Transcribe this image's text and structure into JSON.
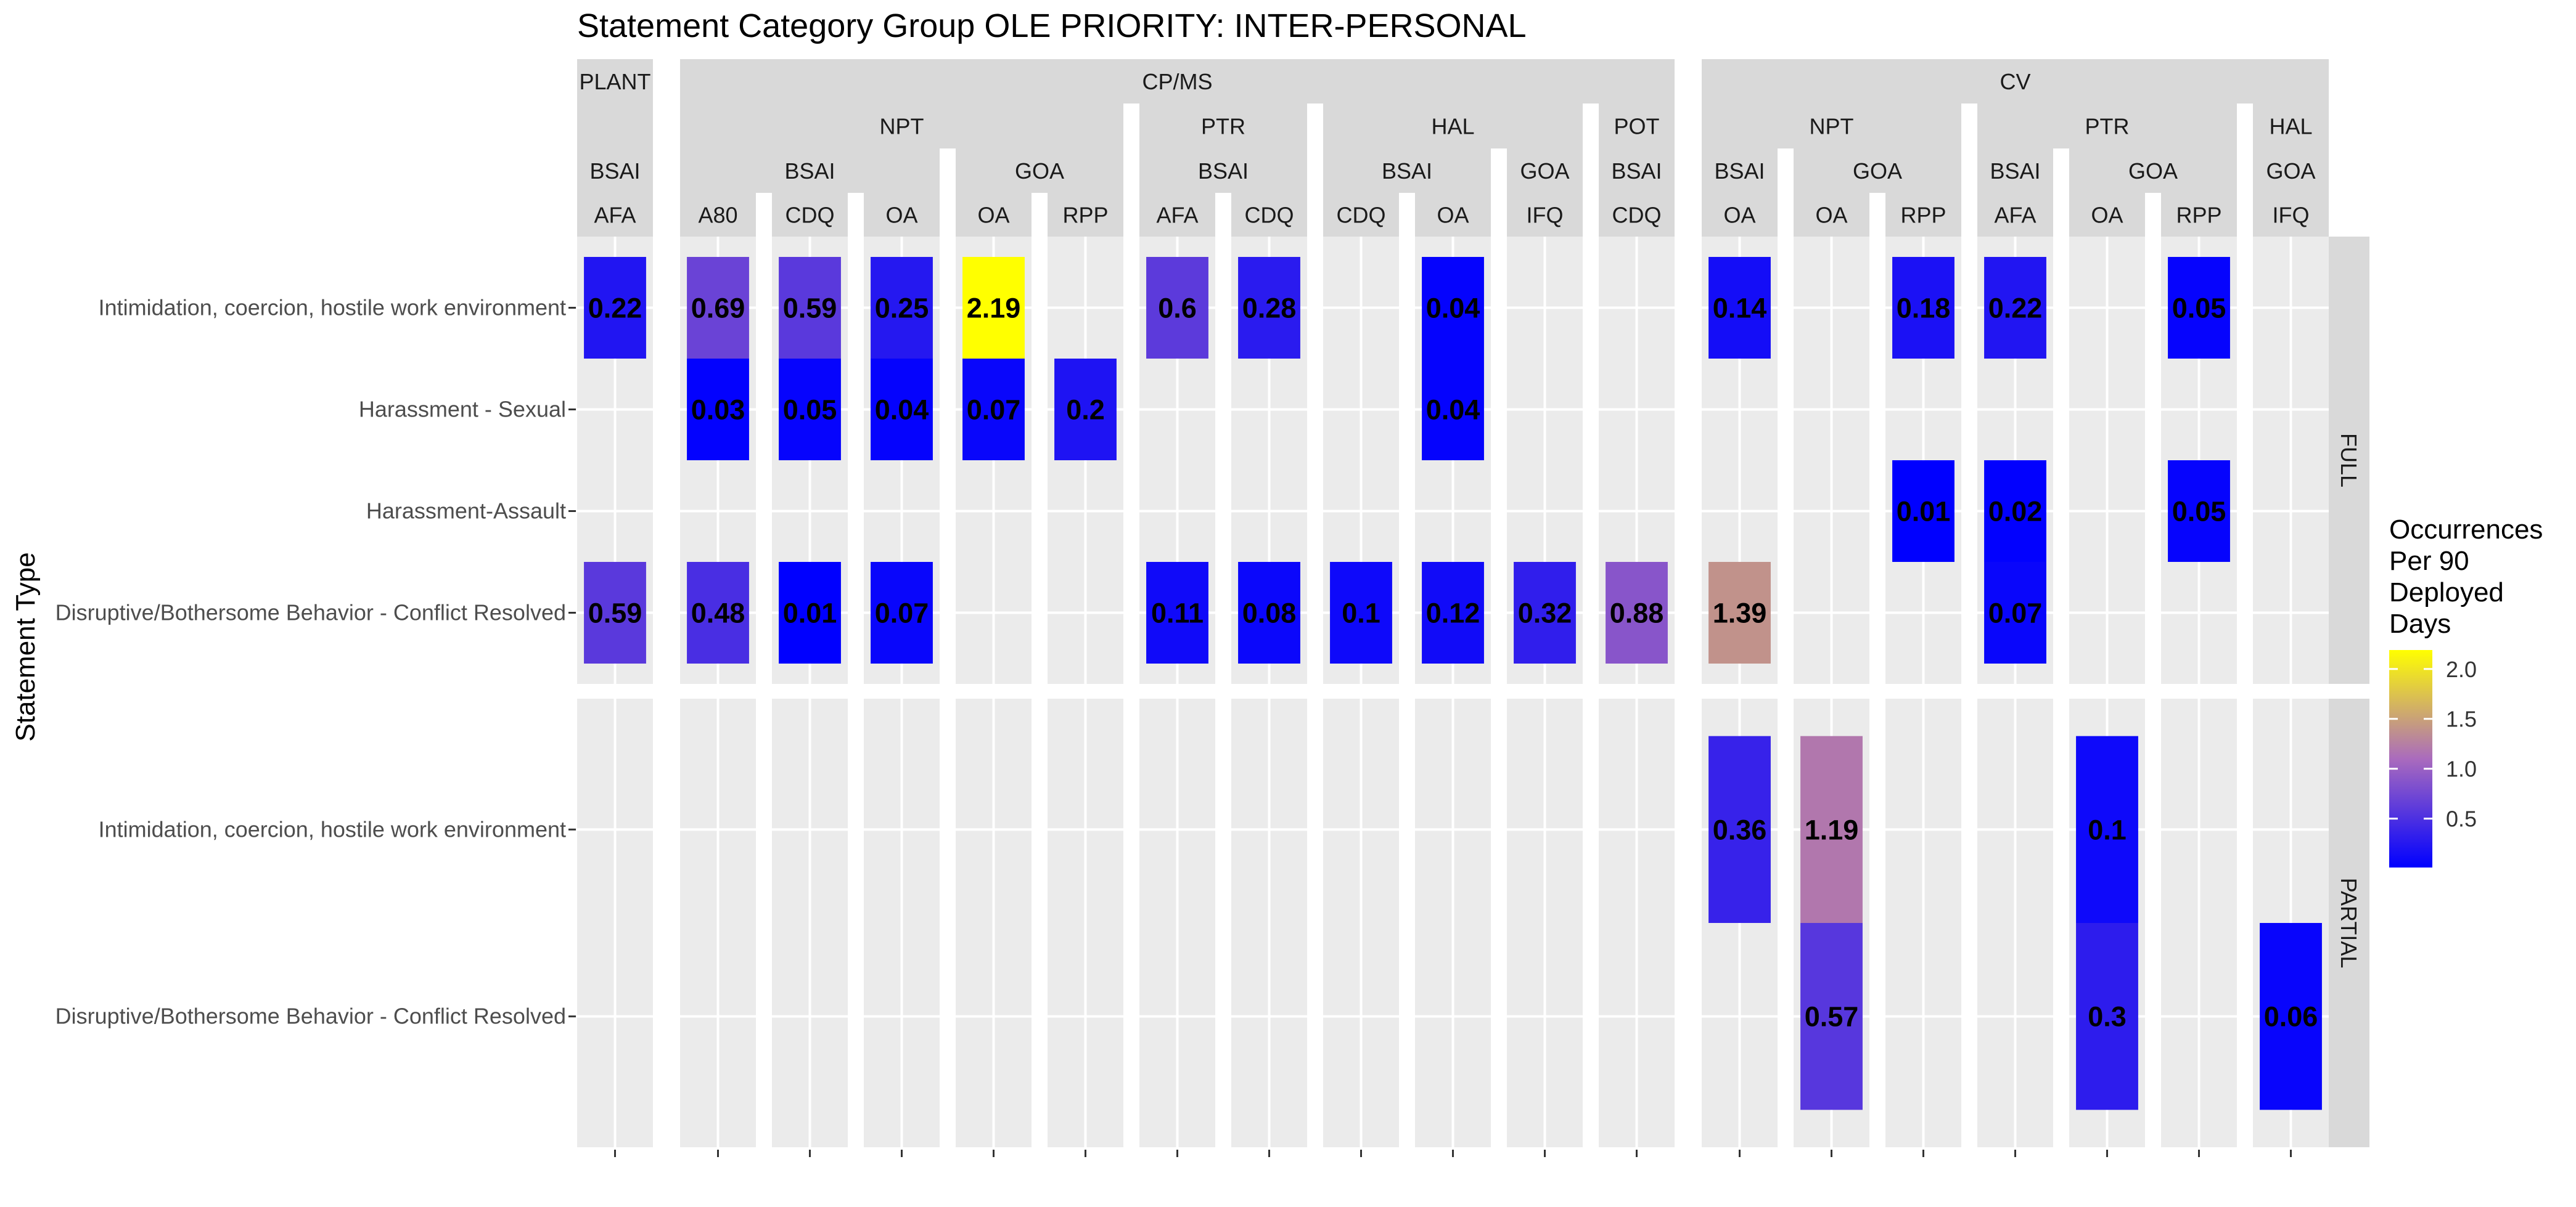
{
  "chart_data": {
    "type": "heatmap",
    "title": "Statement Category Group OLE PRIORITY: INTER-PERSONAL",
    "ylabel": "Statement Type",
    "xlabel": "",
    "legend": {
      "title_lines": [
        "Occurrences",
        "Per 90",
        "Deployed",
        "Days"
      ],
      "ticks": [
        {
          "value": 0.5,
          "label": "0.5"
        },
        {
          "value": 1.0,
          "label": "1.0"
        },
        {
          "value": 1.5,
          "label": "1.5"
        },
        {
          "value": 2.0,
          "label": "2.0"
        }
      ],
      "range": [
        0.01,
        2.19
      ],
      "position": "right",
      "colors": {
        "low": "#0000ff",
        "mid": "#aa6bbd",
        "high": "#ffff00"
      }
    },
    "strip_level1": [
      "PLANT",
      "CP/MS",
      "CV"
    ],
    "strip_level2": [
      "NPT",
      "PTR",
      "HAL",
      "POT",
      "NPT",
      "PTR",
      "HAL"
    ],
    "strip_level3": [
      "BSAI",
      "BSAI",
      "GOA",
      "BSAI",
      "BSAI",
      "GOA",
      "BSAI",
      "BSAI",
      "GOA",
      "BSAI",
      "GOA",
      "GOA"
    ],
    "panels": [
      {
        "l1": 0,
        "l2": null,
        "l3": 0,
        "label": "AFA"
      },
      {
        "l1": 1,
        "l2": 0,
        "l3": 1,
        "label": "A80"
      },
      {
        "l1": 1,
        "l2": 0,
        "l3": 1,
        "label": "CDQ"
      },
      {
        "l1": 1,
        "l2": 0,
        "l3": 1,
        "label": "OA"
      },
      {
        "l1": 1,
        "l2": 0,
        "l3": 2,
        "label": "OA"
      },
      {
        "l1": 1,
        "l2": 0,
        "l3": 2,
        "label": "RPP"
      },
      {
        "l1": 1,
        "l2": 1,
        "l3": 3,
        "label": "AFA"
      },
      {
        "l1": 1,
        "l2": 1,
        "l3": 3,
        "label": "CDQ"
      },
      {
        "l1": 1,
        "l2": 2,
        "l3": 4,
        "label": "CDQ"
      },
      {
        "l1": 1,
        "l2": 2,
        "l3": 4,
        "label": "OA"
      },
      {
        "l1": 1,
        "l2": 2,
        "l3": 5,
        "label": "IFQ"
      },
      {
        "l1": 1,
        "l2": 3,
        "l3": 6,
        "label": "CDQ"
      },
      {
        "l1": 2,
        "l2": 4,
        "l3": 7,
        "label": "OA"
      },
      {
        "l1": 2,
        "l2": 4,
        "l3": 8,
        "label": "OA"
      },
      {
        "l1": 2,
        "l2": 4,
        "l3": 8,
        "label": "RPP"
      },
      {
        "l1": 2,
        "l2": 5,
        "l3": 9,
        "label": "AFA"
      },
      {
        "l1": 2,
        "l2": 5,
        "l3": 10,
        "label": "OA"
      },
      {
        "l1": 2,
        "l2": 5,
        "l3": 10,
        "label": "RPP"
      },
      {
        "l1": 2,
        "l2": 6,
        "l3": 11,
        "label": "IFQ"
      }
    ],
    "rows": [
      {
        "name": "FULL",
        "categories": [
          "Intimidation, coercion, hostile work environment",
          "Harassment - Sexual",
          "Harassment-Assault",
          "Disruptive/Bothersome Behavior - Conflict Resolved"
        ]
      },
      {
        "name": "PARTIAL",
        "categories": [
          "Intimidation, coercion, hostile work environment",
          "Disruptive/Bothersome Behavior - Conflict Resolved"
        ]
      }
    ],
    "cells": [
      {
        "panel": 0,
        "row": 0,
        "cat": 0,
        "value": 0.22,
        "label": "0.22"
      },
      {
        "panel": 0,
        "row": 0,
        "cat": 3,
        "value": 0.59,
        "label": "0.59"
      },
      {
        "panel": 1,
        "row": 0,
        "cat": 0,
        "value": 0.69,
        "label": "0.69"
      },
      {
        "panel": 1,
        "row": 0,
        "cat": 1,
        "value": 0.03,
        "label": "0.03"
      },
      {
        "panel": 1,
        "row": 0,
        "cat": 3,
        "value": 0.48,
        "label": "0.48"
      },
      {
        "panel": 2,
        "row": 0,
        "cat": 0,
        "value": 0.59,
        "label": "0.59"
      },
      {
        "panel": 2,
        "row": 0,
        "cat": 1,
        "value": 0.05,
        "label": "0.05"
      },
      {
        "panel": 2,
        "row": 0,
        "cat": 3,
        "value": 0.01,
        "label": "0.01"
      },
      {
        "panel": 3,
        "row": 0,
        "cat": 0,
        "value": 0.25,
        "label": "0.25"
      },
      {
        "panel": 3,
        "row": 0,
        "cat": 1,
        "value": 0.04,
        "label": "0.04"
      },
      {
        "panel": 3,
        "row": 0,
        "cat": 3,
        "value": 0.07,
        "label": "0.07"
      },
      {
        "panel": 4,
        "row": 0,
        "cat": 0,
        "value": 2.19,
        "label": "2.19"
      },
      {
        "panel": 4,
        "row": 0,
        "cat": 1,
        "value": 0.07,
        "label": "0.07"
      },
      {
        "panel": 5,
        "row": 0,
        "cat": 1,
        "value": 0.2,
        "label": "0.2"
      },
      {
        "panel": 6,
        "row": 0,
        "cat": 0,
        "value": 0.6,
        "label": "0.6"
      },
      {
        "panel": 6,
        "row": 0,
        "cat": 3,
        "value": 0.11,
        "label": "0.11"
      },
      {
        "panel": 7,
        "row": 0,
        "cat": 0,
        "value": 0.28,
        "label": "0.28"
      },
      {
        "panel": 7,
        "row": 0,
        "cat": 3,
        "value": 0.08,
        "label": "0.08"
      },
      {
        "panel": 8,
        "row": 0,
        "cat": 3,
        "value": 0.1,
        "label": "0.1"
      },
      {
        "panel": 9,
        "row": 0,
        "cat": 0,
        "value": 0.04,
        "label": "0.04"
      },
      {
        "panel": 9,
        "row": 0,
        "cat": 1,
        "value": 0.04,
        "label": "0.04"
      },
      {
        "panel": 9,
        "row": 0,
        "cat": 3,
        "value": 0.12,
        "label": "0.12"
      },
      {
        "panel": 10,
        "row": 0,
        "cat": 3,
        "value": 0.32,
        "label": "0.32"
      },
      {
        "panel": 11,
        "row": 0,
        "cat": 3,
        "value": 0.88,
        "label": "0.88"
      },
      {
        "panel": 12,
        "row": 0,
        "cat": 0,
        "value": 0.14,
        "label": "0.14"
      },
      {
        "panel": 12,
        "row": 0,
        "cat": 3,
        "value": 1.39,
        "label": "1.39"
      },
      {
        "panel": 14,
        "row": 0,
        "cat": 0,
        "value": 0.18,
        "label": "0.18"
      },
      {
        "panel": 14,
        "row": 0,
        "cat": 2,
        "value": 0.01,
        "label": "0.01"
      },
      {
        "panel": 15,
        "row": 0,
        "cat": 0,
        "value": 0.22,
        "label": "0.22"
      },
      {
        "panel": 15,
        "row": 0,
        "cat": 2,
        "value": 0.02,
        "label": "0.02"
      },
      {
        "panel": 15,
        "row": 0,
        "cat": 3,
        "value": 0.07,
        "label": "0.07"
      },
      {
        "panel": 17,
        "row": 0,
        "cat": 0,
        "value": 0.05,
        "label": "0.05"
      },
      {
        "panel": 17,
        "row": 0,
        "cat": 2,
        "value": 0.05,
        "label": "0.05"
      },
      {
        "panel": 12,
        "row": 1,
        "cat": 0,
        "value": 0.36,
        "label": "0.36"
      },
      {
        "panel": 13,
        "row": 1,
        "cat": 0,
        "value": 1.19,
        "label": "1.19"
      },
      {
        "panel": 13,
        "row": 1,
        "cat": 1,
        "value": 0.57,
        "label": "0.57"
      },
      {
        "panel": 16,
        "row": 1,
        "cat": 0,
        "value": 0.1,
        "label": "0.1"
      },
      {
        "panel": 16,
        "row": 1,
        "cat": 1,
        "value": 0.3,
        "label": "0.3"
      },
      {
        "panel": 18,
        "row": 1,
        "cat": 1,
        "value": 0.06,
        "label": "0.06"
      }
    ]
  }
}
